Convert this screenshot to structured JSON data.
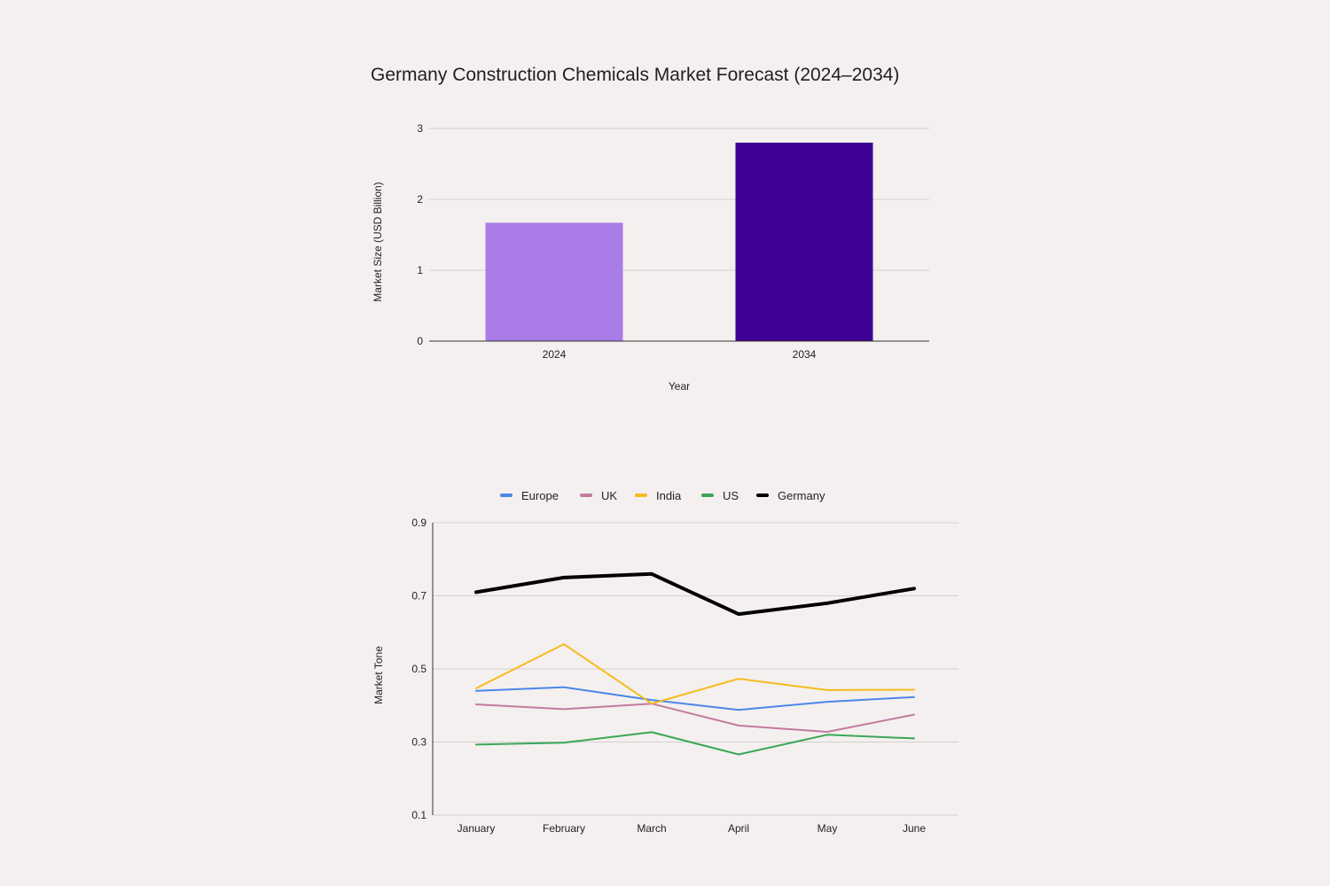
{
  "chart_data": [
    {
      "type": "bar",
      "title": "Germany Construction Chemicals Market Forecast (2024–2034)",
      "xlabel": "Year",
      "ylabel": "Market Size (USD Billion)",
      "categories": [
        "2024",
        "2034"
      ],
      "values": [
        1.67,
        2.8
      ],
      "bar_colors": [
        "#a97ce8",
        "#3f0096"
      ],
      "ylim": [
        0,
        3
      ],
      "yticks": [
        0,
        1,
        2,
        3
      ],
      "grid": true,
      "legend": "none"
    },
    {
      "type": "line",
      "title": "",
      "xlabel": "",
      "ylabel": "Market Tone",
      "categories": [
        "January",
        "February",
        "March",
        "April",
        "May",
        "June"
      ],
      "ylim": [
        0.1,
        0.9
      ],
      "yticks": [
        "0.1",
        "0.3",
        "0.5",
        "0.7",
        "0.9"
      ],
      "grid": true,
      "legend": "top",
      "series": [
        {
          "name": "Europe",
          "color": "#4a86e8",
          "values": [
            0.44,
            0.45,
            0.415,
            0.388,
            0.41,
            0.423
          ]
        },
        {
          "name": "UK",
          "color": "#c27ba0",
          "values": [
            0.403,
            0.39,
            0.405,
            0.345,
            0.328,
            0.375
          ]
        },
        {
          "name": "India",
          "color": "#f6bb1e",
          "values": [
            0.447,
            0.568,
            0.405,
            0.473,
            0.442,
            0.443
          ]
        },
        {
          "name": "US",
          "color": "#3aa757",
          "values": [
            0.293,
            0.298,
            0.327,
            0.266,
            0.32,
            0.31
          ]
        },
        {
          "name": "Germany",
          "color": "#000000",
          "values": [
            0.71,
            0.75,
            0.76,
            0.65,
            0.68,
            0.72
          ]
        }
      ]
    }
  ]
}
